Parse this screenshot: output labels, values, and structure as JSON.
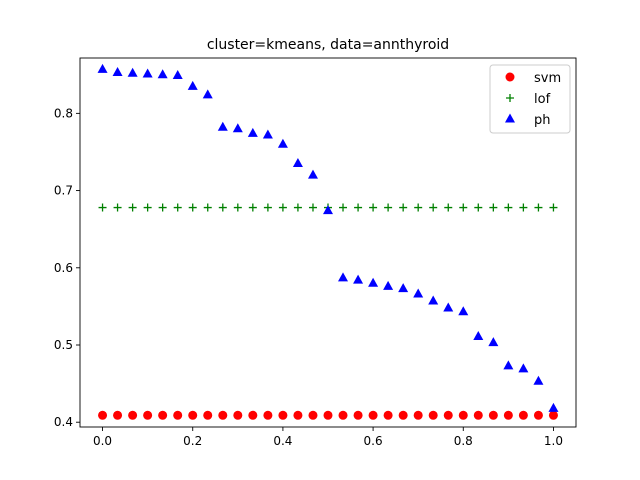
{
  "chart_data": {
    "type": "scatter",
    "title": "cluster=kmeans, data=annthyroid",
    "xlabel": "",
    "ylabel": "",
    "xlim": [
      -0.05,
      1.05
    ],
    "ylim": [
      0.3938,
      0.8717
    ],
    "xticks": [
      0.0,
      0.2,
      0.4,
      0.6,
      0.8,
      1.0
    ],
    "xtick_labels": [
      "0.0",
      "0.2",
      "0.4",
      "0.6",
      "0.8",
      "1.0"
    ],
    "yticks": [
      0.4,
      0.5,
      0.6,
      0.7,
      0.8
    ],
    "ytick_labels": [
      "0.4",
      "0.5",
      "0.6",
      "0.7",
      "0.8"
    ],
    "grid": false,
    "legend_position": "top-right",
    "x": [
      0.0,
      0.0333,
      0.0667,
      0.1,
      0.1333,
      0.1667,
      0.2,
      0.2333,
      0.2667,
      0.3,
      0.3333,
      0.3667,
      0.4,
      0.4333,
      0.4667,
      0.5,
      0.5333,
      0.5667,
      0.6,
      0.6333,
      0.6667,
      0.7,
      0.7333,
      0.7667,
      0.8,
      0.8333,
      0.8667,
      0.9,
      0.9333,
      0.9667,
      1.0
    ],
    "series": [
      {
        "name": "svm",
        "marker": "circle",
        "color": "#ff0000",
        "values": [
          0.409,
          0.409,
          0.409,
          0.409,
          0.409,
          0.409,
          0.409,
          0.409,
          0.409,
          0.409,
          0.409,
          0.409,
          0.409,
          0.409,
          0.409,
          0.409,
          0.409,
          0.409,
          0.409,
          0.409,
          0.409,
          0.409,
          0.409,
          0.409,
          0.409,
          0.409,
          0.409,
          0.409,
          0.409,
          0.409,
          0.409
        ]
      },
      {
        "name": "lof",
        "marker": "plus",
        "color": "#008000",
        "values": [
          0.678,
          0.678,
          0.678,
          0.678,
          0.678,
          0.678,
          0.678,
          0.678,
          0.678,
          0.678,
          0.678,
          0.678,
          0.678,
          0.678,
          0.678,
          0.678,
          0.678,
          0.678,
          0.678,
          0.678,
          0.678,
          0.678,
          0.678,
          0.678,
          0.678,
          0.678,
          0.678,
          0.678,
          0.678,
          0.678,
          0.678
        ]
      },
      {
        "name": "ph",
        "marker": "triangle",
        "color": "#0000ff",
        "values": [
          0.857,
          0.853,
          0.852,
          0.851,
          0.85,
          0.849,
          0.835,
          0.824,
          0.782,
          0.78,
          0.774,
          0.772,
          0.76,
          0.735,
          0.72,
          0.674,
          0.587,
          0.584,
          0.58,
          0.576,
          0.573,
          0.566,
          0.557,
          0.548,
          0.543,
          0.511,
          0.503,
          0.473,
          0.469,
          0.453,
          0.418
        ]
      }
    ]
  }
}
